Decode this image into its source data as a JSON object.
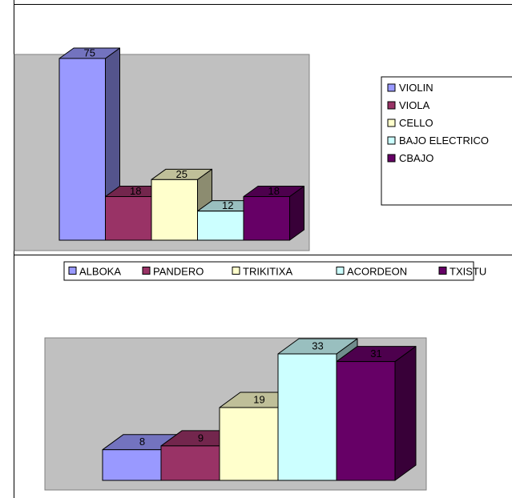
{
  "chart_data": [
    {
      "type": "bar",
      "categories": [
        "VIOLIN",
        "VIOLA",
        "CELLO",
        "BAJO ELECTRICO",
        "CBAJO"
      ],
      "values": [
        75,
        18,
        25,
        12,
        18
      ],
      "legend_labels": [
        "VIOLIN",
        "VIOLA",
        "CELLO",
        "BAJO ELECTRICO",
        "CBAJO"
      ],
      "colors": [
        "#9999ff",
        "#993366",
        "#ffffcc",
        "#ccffff",
        "#660066"
      ],
      "bar_style": "3d",
      "data_labels": true,
      "legend_position": "right",
      "grid": false,
      "ylim": [
        0,
        75
      ]
    },
    {
      "type": "bar",
      "categories": [
        "ALBOKA",
        "PANDERO",
        "TRIKITIXA",
        "ACORDEON",
        "TXISTU"
      ],
      "values": [
        8,
        9,
        19,
        33,
        31
      ],
      "legend_labels": [
        "ALBOKA",
        "PANDERO",
        "TRIKITIXA",
        "ACORDEON",
        "TXISTU"
      ],
      "colors": [
        "#9999ff",
        "#993366",
        "#ffffcc",
        "#ccffff",
        "#660066"
      ],
      "bar_style": "3d",
      "data_labels": true,
      "legend_position": "top",
      "grid": false,
      "ylim": [
        0,
        33
      ]
    }
  ]
}
